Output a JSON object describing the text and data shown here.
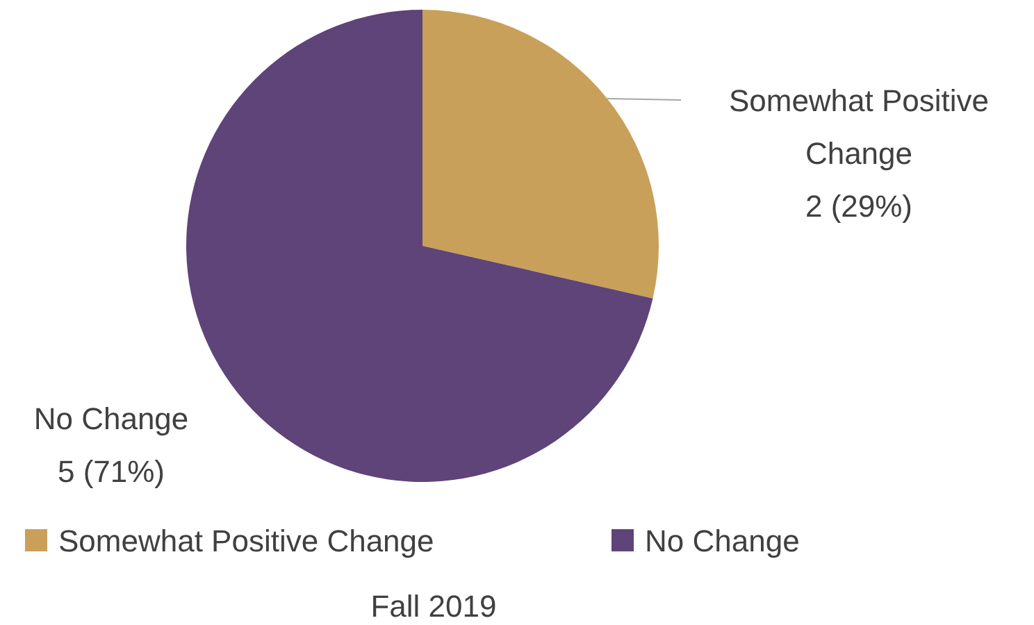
{
  "chart_data": {
    "type": "pie",
    "title": "Fall 2019",
    "categories": [
      "Somewhat Positive Change",
      "No Change"
    ],
    "values": [
      2,
      5
    ],
    "colors": [
      "#c9a05a",
      "#5e4478"
    ],
    "value_labels": [
      "2 (29%)",
      "5 (71%)"
    ],
    "legend": "bottom"
  }
}
